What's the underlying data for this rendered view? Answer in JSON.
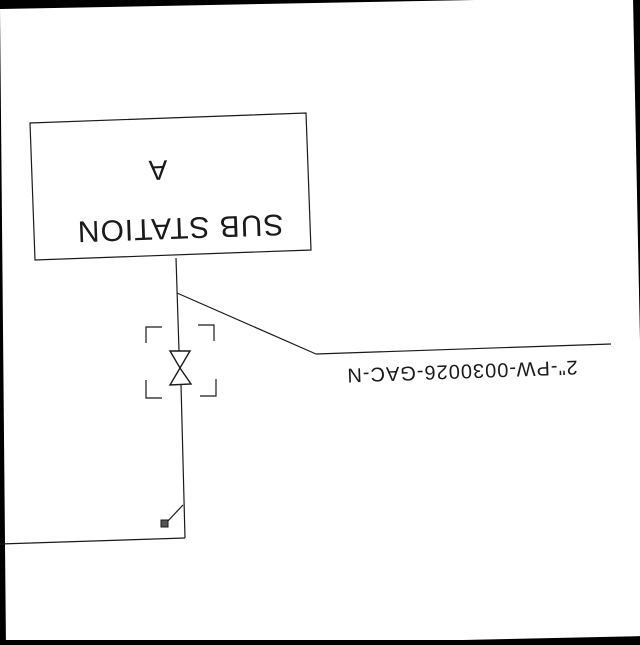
{
  "colors": {
    "sheet": "#ffffff",
    "line": "#1a1a1a",
    "border": "#000000"
  },
  "substation": {
    "id_label": "A",
    "name_label": "SUB STATION"
  },
  "pipe": {
    "line_label": "2\"-PW-0030026-GAC-N"
  },
  "valve": {
    "icon": "gate-valve-icon"
  },
  "orientation": {
    "text_mirrored": true,
    "text_inverted": true
  }
}
